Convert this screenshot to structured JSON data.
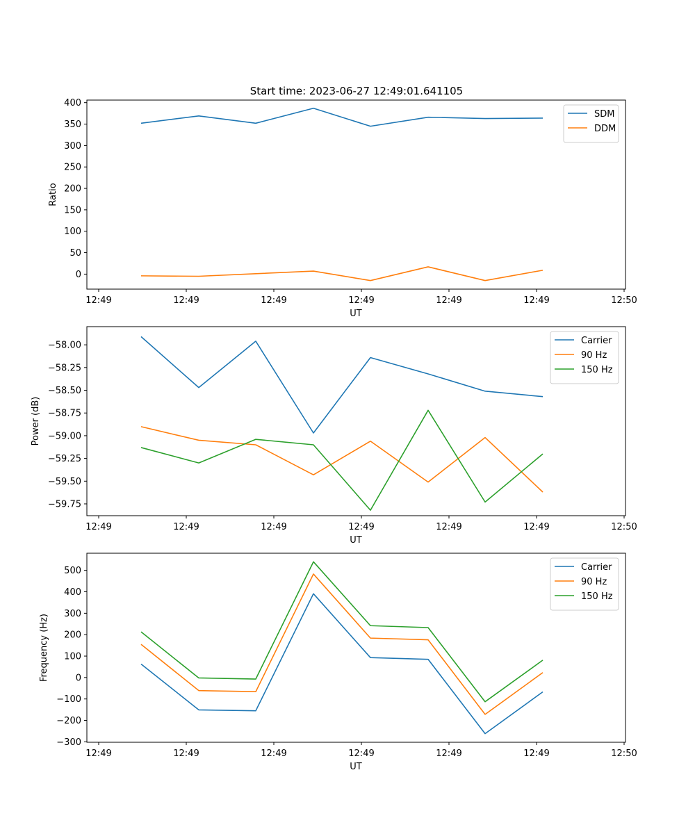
{
  "figure": {
    "title": "Start time: 2023-06-27 12:49:01.641105"
  },
  "chart_data": [
    {
      "type": "line",
      "title": "Start time: 2023-06-27 12:49:01.641105",
      "xlabel": "UT",
      "ylabel": "Ratio",
      "x_ticklabels": [
        "12:49",
        "12:49",
        "12:49",
        "12:49",
        "12:49",
        "12:49",
        "12:50"
      ],
      "y_ticks": [
        0,
        50,
        100,
        150,
        200,
        250,
        300,
        350,
        400
      ],
      "y_ticklabels": [
        "0",
        "50",
        "100",
        "150",
        "200",
        "250",
        "300",
        "350",
        "400"
      ],
      "ylim": [
        -35,
        406
      ],
      "legend_position": "upper right",
      "grid": false,
      "series": [
        {
          "name": "SDM",
          "color": "#1f77b4",
          "values": [
            352,
            369,
            352,
            387,
            345,
            366,
            363,
            364
          ]
        },
        {
          "name": "DDM",
          "color": "#ff7f0e",
          "values": [
            -4,
            -5,
            1,
            7,
            -15,
            17,
            -15,
            9
          ]
        }
      ]
    },
    {
      "type": "line",
      "title": "",
      "xlabel": "UT",
      "ylabel": "Power (dB)",
      "x_ticklabels": [
        "12:49",
        "12:49",
        "12:49",
        "12:49",
        "12:49",
        "12:49",
        "12:50"
      ],
      "y_ticks": [
        -59.75,
        -59.5,
        -59.25,
        -59.0,
        -58.75,
        -58.5,
        -58.25,
        -58.0
      ],
      "y_ticklabels": [
        "−59.75",
        "−59.50",
        "−59.25",
        "−59.00",
        "−58.75",
        "−58.50",
        "−58.25",
        "−58.00"
      ],
      "ylim": [
        -59.88,
        -57.8
      ],
      "legend_position": "upper right",
      "grid": false,
      "series": [
        {
          "name": "Carrier",
          "color": "#1f77b4",
          "values": [
            -57.91,
            -58.47,
            -57.96,
            -58.97,
            -58.14,
            -58.32,
            -58.51,
            -58.57
          ]
        },
        {
          "name": "90 Hz",
          "color": "#ff7f0e",
          "values": [
            -58.9,
            -59.05,
            -59.1,
            -59.43,
            -59.06,
            -59.51,
            -59.02,
            -59.62
          ]
        },
        {
          "name": "150 Hz",
          "color": "#2ca02c",
          "values": [
            -59.13,
            -59.3,
            -59.04,
            -59.1,
            -59.82,
            -58.72,
            -59.73,
            -59.2
          ]
        }
      ]
    },
    {
      "type": "line",
      "title": "",
      "xlabel": "UT",
      "ylabel": "Frequency (Hz)",
      "x_ticklabels": [
        "12:49",
        "12:49",
        "12:49",
        "12:49",
        "12:49",
        "12:49",
        "12:50"
      ],
      "y_ticks": [
        -300,
        -200,
        -100,
        0,
        100,
        200,
        300,
        400,
        500
      ],
      "y_ticklabels": [
        "−300",
        "−200",
        "−100",
        "0",
        "100",
        "200",
        "300",
        "400",
        "500"
      ],
      "ylim": [
        -302,
        580
      ],
      "legend_position": "upper right",
      "grid": false,
      "series": [
        {
          "name": "Carrier",
          "color": "#1f77b4",
          "values": [
            63,
            -151,
            -155,
            391,
            93,
            85,
            -262,
            -67
          ]
        },
        {
          "name": "90 Hz",
          "color": "#ff7f0e",
          "values": [
            155,
            -61,
            -66,
            483,
            184,
            176,
            -172,
            23
          ]
        },
        {
          "name": "150 Hz",
          "color": "#2ca02c",
          "values": [
            213,
            -2,
            -7,
            540,
            242,
            233,
            -113,
            81
          ]
        }
      ]
    }
  ]
}
